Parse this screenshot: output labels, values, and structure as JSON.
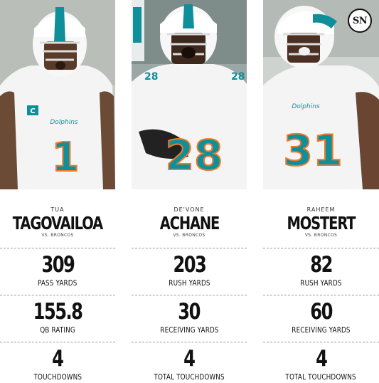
{
  "brand": {
    "logo_text": "SN"
  },
  "players": [
    {
      "first_name": "TUA",
      "last_name": "TAGOVAILOA",
      "opponent": "VS. BRONCOS",
      "jersey_number": "1",
      "stats": [
        {
          "value": "309",
          "label": "PASS YARDS"
        },
        {
          "value": "155.8",
          "label": "QB RATING"
        },
        {
          "value": "4",
          "label": "TOUCHDOWNS"
        }
      ]
    },
    {
      "first_name": "DE'VONE",
      "last_name": "ACHANE",
      "opponent": "VS. BRONCOS",
      "jersey_number": "28",
      "stats": [
        {
          "value": "203",
          "label": "RUSH YARDS"
        },
        {
          "value": "30",
          "label": "RECEIVING YARDS"
        },
        {
          "value": "4",
          "label": "TOTAL TOUCHDOWNS"
        }
      ]
    },
    {
      "first_name": "RAHEEM",
      "last_name": "MOSTERT",
      "opponent": "VS. BRONCOS",
      "jersey_number": "31",
      "stats": [
        {
          "value": "82",
          "label": "RUSH YARDS"
        },
        {
          "value": "60",
          "label": "RECEIVING YARDS"
        },
        {
          "value": "4",
          "label": "TOTAL TOUCHDOWNS"
        }
      ]
    }
  ],
  "colors": {
    "aqua": "#0f8f9a",
    "orange": "#f07a28",
    "jersey_white": "#f4f4f4",
    "text": "#111111"
  }
}
